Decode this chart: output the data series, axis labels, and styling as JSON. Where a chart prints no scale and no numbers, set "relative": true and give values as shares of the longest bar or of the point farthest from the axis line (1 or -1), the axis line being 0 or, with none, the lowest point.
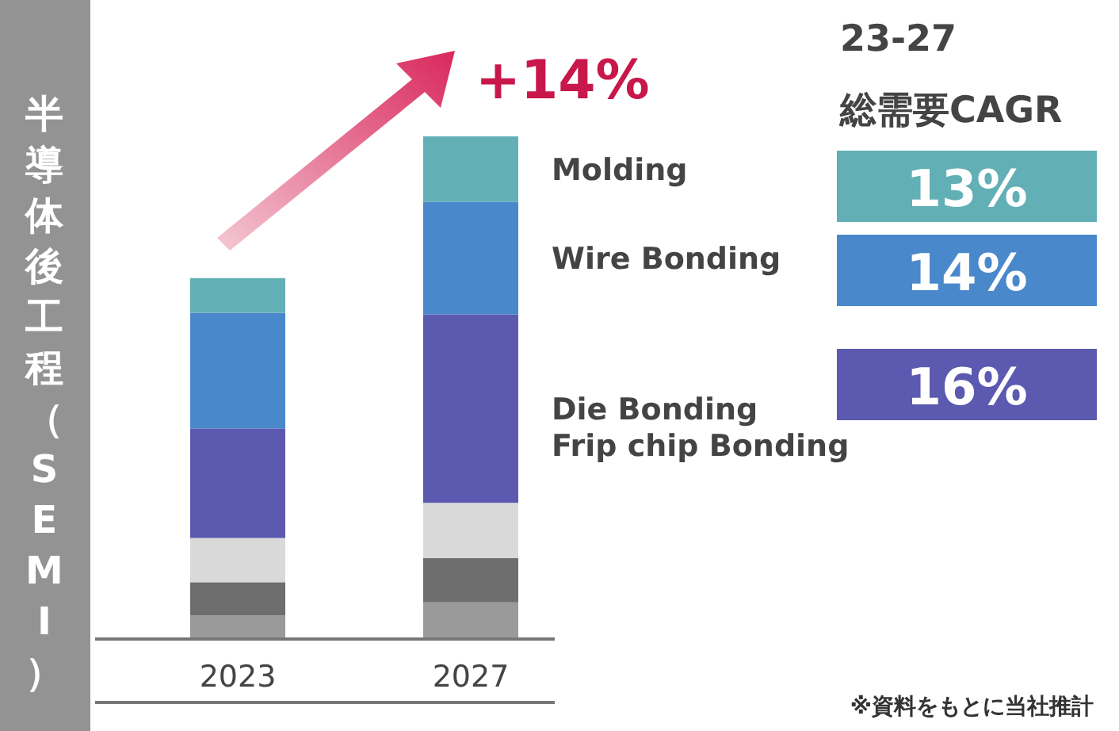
{
  "chart_data": {
    "type": "bar",
    "stacked": true,
    "relative": true,
    "ylabel": "半導体後工程（SEMI）",
    "categories": [
      "2023",
      "2027"
    ],
    "series": [
      {
        "color": "#9a9a9a",
        "values": [
          0.047,
          0.073
        ]
      },
      {
        "color": "#6e6e6e",
        "values": [
          0.066,
          0.088
        ]
      },
      {
        "color": "#d9d9d9",
        "values": [
          0.088,
          0.11
        ]
      },
      {
        "name": "Die Bonding\nFrip chip Bonding",
        "color": "#5b5ab0",
        "values": [
          0.218,
          0.375
        ]
      },
      {
        "name": "Wire Bonding",
        "color": "#4a88cc",
        "values": [
          0.23,
          0.224
        ]
      },
      {
        "name": "Molding",
        "color": "#62b0b5",
        "values": [
          0.069,
          0.13
        ]
      }
    ],
    "annotations": [
      "+14%",
      "23-27",
      "総需要CAGR",
      "13%",
      "14%",
      "16%",
      "※資料をもとに当社推計"
    ]
  }
}
